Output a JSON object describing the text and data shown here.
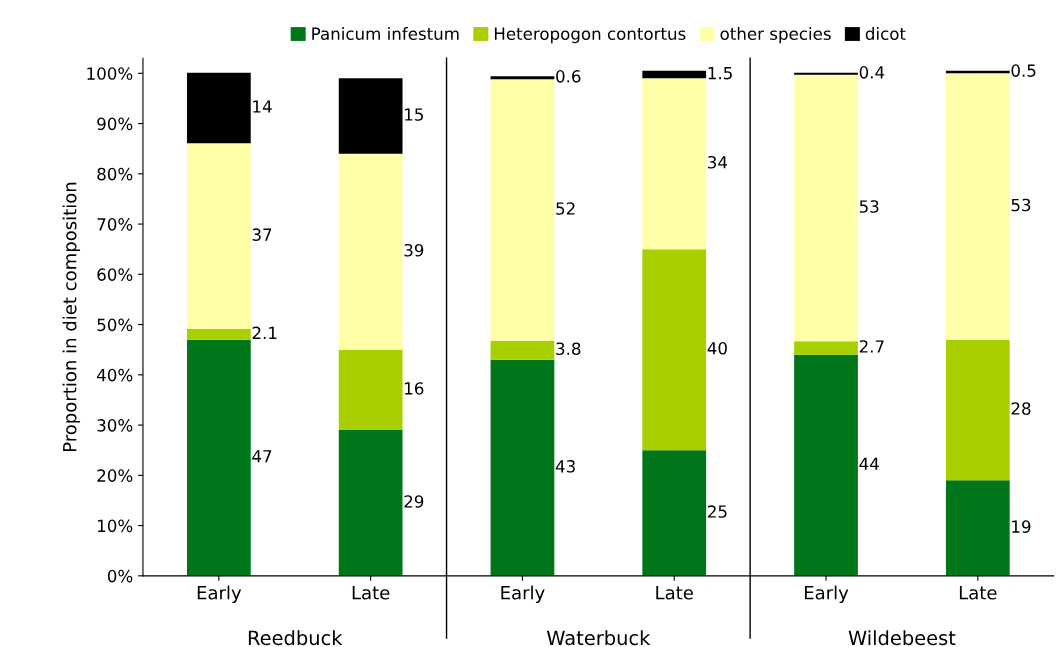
{
  "chart_data": {
    "type": "bar",
    "stacked": true,
    "ylabel": "Proportion in diet composition",
    "categories": [
      "Early",
      "Late",
      "Early",
      "Late",
      "Early",
      "Late"
    ],
    "annotations": [
      "Reedbuck",
      "Waterbuck",
      "Wildebeest"
    ],
    "series": [
      {
        "name": "Panicum infestum",
        "color": "#00761a",
        "values": [
          47,
          29,
          43,
          25,
          44,
          19
        ],
        "value_labels": [
          "47",
          "29",
          "43",
          "25",
          "44",
          "19"
        ]
      },
      {
        "name": "Heteropogon contortus",
        "color": "#a8cf00",
        "values": [
          2.1,
          16,
          3.8,
          40,
          2.7,
          28
        ],
        "value_labels": [
          "2.1",
          "16",
          "3.8",
          "40",
          "2.7",
          "28"
        ]
      },
      {
        "name": "other species",
        "color": "#ffffa8",
        "values": [
          37,
          39,
          52,
          34,
          53,
          53
        ],
        "value_labels": [
          "37",
          "39",
          "52",
          "34",
          "53",
          "53"
        ]
      },
      {
        "name": "dicot",
        "color": "#000000",
        "values": [
          14,
          15,
          0.6,
          1.5,
          0.4,
          0.5
        ],
        "value_labels": [
          "14",
          "15",
          "0.6",
          "1.5",
          "0.4",
          "0.5"
        ]
      }
    ],
    "ylim": [
      0,
      103
    ],
    "yticks": [
      {
        "value": 0,
        "label": "0%"
      },
      {
        "value": 10,
        "label": "10%"
      },
      {
        "value": 20,
        "label": "20%"
      },
      {
        "value": 30,
        "label": "30%"
      },
      {
        "value": 40,
        "label": "40%"
      },
      {
        "value": 50,
        "label": "50%"
      },
      {
        "value": 60,
        "label": "60%"
      },
      {
        "value": 70,
        "label": "70%"
      },
      {
        "value": 80,
        "label": "80%"
      },
      {
        "value": 90,
        "label": "90%"
      },
      {
        "value": 100,
        "label": "100%"
      }
    ],
    "legend": "top",
    "grid": false
  }
}
